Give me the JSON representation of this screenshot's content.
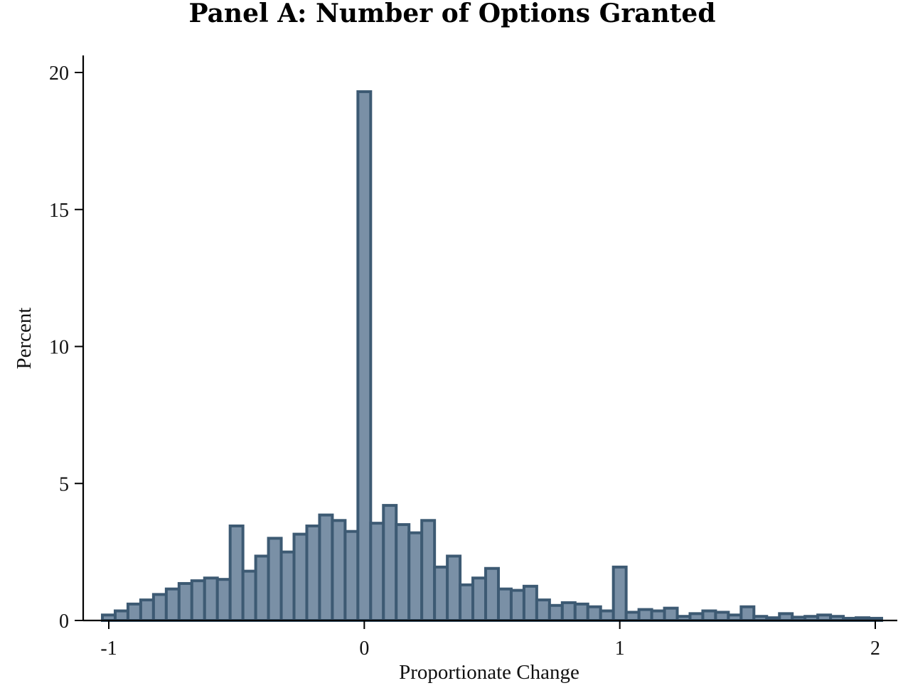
{
  "chart_data": {
    "type": "bar",
    "title": "Panel A: Number of Options Granted",
    "xlabel": "Proportionate Change",
    "ylabel": "Percent",
    "xlim": [
      -1.03,
      2.03
    ],
    "ylim": [
      0,
      20
    ],
    "xticks": [
      -1,
      0,
      1,
      2
    ],
    "xtick_labels": [
      "-1",
      "0",
      "1",
      "2"
    ],
    "yticks": [
      0,
      5,
      10,
      15,
      20
    ],
    "ytick_labels": [
      "0",
      "5",
      "10",
      "15",
      "20"
    ],
    "bin_start": -1.025,
    "bin_width": 0.05,
    "values": [
      0.2,
      0.35,
      0.6,
      0.75,
      0.95,
      1.15,
      1.35,
      1.45,
      1.55,
      1.5,
      3.45,
      1.8,
      2.35,
      3.0,
      2.5,
      3.15,
      3.45,
      3.85,
      3.65,
      3.25,
      19.3,
      3.55,
      4.2,
      3.5,
      3.2,
      3.65,
      1.95,
      2.35,
      1.3,
      1.55,
      1.9,
      1.15,
      1.1,
      1.25,
      0.75,
      0.55,
      0.65,
      0.6,
      0.5,
      0.35,
      1.95,
      0.3,
      0.4,
      0.35,
      0.45,
      0.15,
      0.25,
      0.35,
      0.3,
      0.2,
      0.5,
      0.15,
      0.1,
      0.25,
      0.12,
      0.15,
      0.2,
      0.15,
      0.08,
      0.1,
      0.08
    ],
    "grid": false,
    "colors": {
      "bar_fill": "#7a90a6",
      "bar_edge": "#3d5a73"
    }
  }
}
